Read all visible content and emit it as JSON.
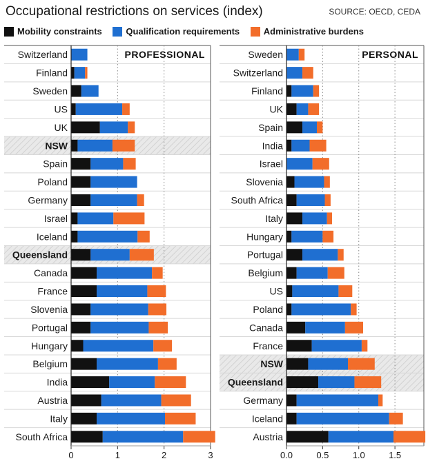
{
  "title": "Occupational restrictions on services (index)",
  "source": "SOURCE: OECD, CEDA",
  "colors": {
    "mobility": "#111111",
    "qualification": "#1f6fd1",
    "administrative": "#f26d2a",
    "highlight": "#e6e6e6"
  },
  "legend": [
    {
      "key": "mobility",
      "label": "Mobility constraints"
    },
    {
      "key": "qualification",
      "label": "Qualification requirements"
    },
    {
      "key": "administrative",
      "label": "Administrative burdens"
    }
  ],
  "chart_data": [
    {
      "type": "bar",
      "orientation": "horizontal",
      "stacked": true,
      "title": "PROFESSIONAL",
      "xlim": [
        0,
        3
      ],
      "xticks": [
        "0",
        "1",
        "2",
        "3"
      ],
      "highlighted": [
        "NSW",
        "Queensland"
      ],
      "categories": [
        "Switzerland",
        "Finland",
        "Sweden",
        "US",
        "UK",
        "NSW",
        "Spain",
        "Poland",
        "Germany",
        "Israel",
        "Iceland",
        "Queensland",
        "Canada",
        "France",
        "Slovenia",
        "Portugal",
        "Hungary",
        "Belgium",
        "India",
        "Austria",
        "Italy",
        "South Africa"
      ],
      "series": [
        {
          "name": "Mobility constraints",
          "key": "mobility",
          "values": [
            0.0,
            0.07,
            0.22,
            0.1,
            0.62,
            0.14,
            0.42,
            0.42,
            0.42,
            0.14,
            0.14,
            0.42,
            0.55,
            0.55,
            0.42,
            0.42,
            0.26,
            0.55,
            0.82,
            0.65,
            0.55,
            0.68
          ]
        },
        {
          "name": "Qualification requirements",
          "key": "qualification",
          "values": [
            0.35,
            0.23,
            0.37,
            1.0,
            0.6,
            0.75,
            0.7,
            1.0,
            1.0,
            0.77,
            1.29,
            0.84,
            1.19,
            1.09,
            1.24,
            1.25,
            1.51,
            1.32,
            0.98,
            1.29,
            1.47,
            1.73
          ]
        },
        {
          "name": "Administrative burdens",
          "key": "administrative",
          "values": [
            0.0,
            0.05,
            0.0,
            0.16,
            0.15,
            0.48,
            0.27,
            0.0,
            0.15,
            0.67,
            0.26,
            0.52,
            0.23,
            0.4,
            0.39,
            0.41,
            0.4,
            0.4,
            0.67,
            0.64,
            0.66,
            0.69
          ]
        }
      ]
    },
    {
      "type": "bar",
      "orientation": "horizontal",
      "stacked": true,
      "title": "PERSONAL",
      "xlim": [
        0,
        1.9
      ],
      "xticks": [
        "0.0",
        "0.5",
        "1.0",
        "1.5"
      ],
      "tick_values": [
        0,
        0.5,
        1.0,
        1.5
      ],
      "highlighted": [
        "NSW",
        "Queensland"
      ],
      "categories": [
        "Sweden",
        "Switzerland",
        "Finland",
        "UK",
        "Spain",
        "India",
        "Israel",
        "Slovenia",
        "South Africa",
        "Italy",
        "Hungary",
        "Portugal",
        "Belgium",
        "US",
        "Poland",
        "Canada",
        "France",
        "NSW",
        "Queensland",
        "Germany",
        "Iceland",
        "Austria"
      ],
      "series": [
        {
          "name": "Mobility constraints",
          "key": "mobility",
          "values": [
            0.0,
            0.0,
            0.07,
            0.14,
            0.22,
            0.07,
            0.0,
            0.11,
            0.14,
            0.22,
            0.07,
            0.22,
            0.14,
            0.08,
            0.07,
            0.26,
            0.35,
            0.3,
            0.44,
            0.14,
            0.14,
            0.58
          ]
        },
        {
          "name": "Qualification requirements",
          "key": "qualification",
          "values": [
            0.17,
            0.22,
            0.3,
            0.16,
            0.2,
            0.25,
            0.36,
            0.41,
            0.39,
            0.34,
            0.43,
            0.49,
            0.43,
            0.64,
            0.82,
            0.55,
            0.69,
            0.55,
            0.5,
            1.13,
            1.28,
            0.9
          ]
        },
        {
          "name": "Administrative burdens",
          "key": "administrative",
          "values": [
            0.08,
            0.15,
            0.08,
            0.15,
            0.08,
            0.23,
            0.23,
            0.08,
            0.08,
            0.07,
            0.15,
            0.08,
            0.23,
            0.19,
            0.08,
            0.25,
            0.08,
            0.37,
            0.37,
            0.06,
            0.19,
            0.44
          ]
        }
      ]
    }
  ]
}
